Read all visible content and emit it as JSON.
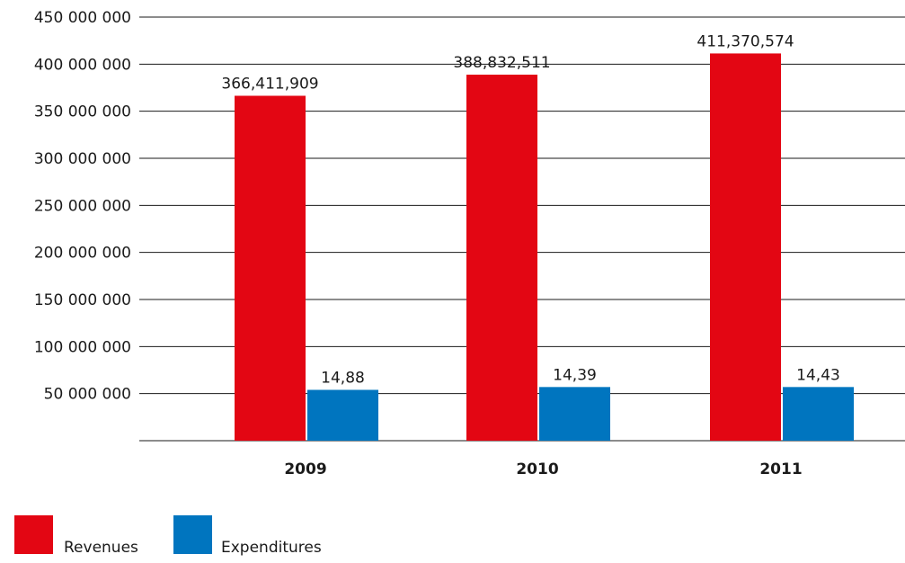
{
  "chart_data": {
    "type": "bar",
    "categories": [
      "2009",
      "2010",
      "2011"
    ],
    "ylim": [
      0,
      450000000
    ],
    "yticks": [
      {
        "value": 50000000,
        "label": "50 000 000"
      },
      {
        "value": 100000000,
        "label": "100 000 000"
      },
      {
        "value": 150000000,
        "label": "150 000 000"
      },
      {
        "value": 200000000,
        "label": "200 000 000"
      },
      {
        "value": 250000000,
        "label": "250 000 000"
      },
      {
        "value": 300000000,
        "label": "300 000 000"
      },
      {
        "value": 350000000,
        "label": "350 000 000"
      },
      {
        "value": 400000000,
        "label": "400 000 000"
      },
      {
        "value": 450000000,
        "label": "450 000 000"
      }
    ],
    "grid": true,
    "legend_position": "bottom-left",
    "series": [
      {
        "name": "Revenues",
        "color": "#e30613",
        "values": [
          366411909,
          388832511,
          411370574
        ],
        "labels": [
          "366,411,909",
          "388,832,511",
          "411,370,574"
        ]
      },
      {
        "name": "Expenditures",
        "color": "#0075bf",
        "values": [
          54000000,
          57000000,
          57000000
        ],
        "labels": [
          "14,88",
          "14,39",
          "14,43"
        ]
      }
    ]
  }
}
